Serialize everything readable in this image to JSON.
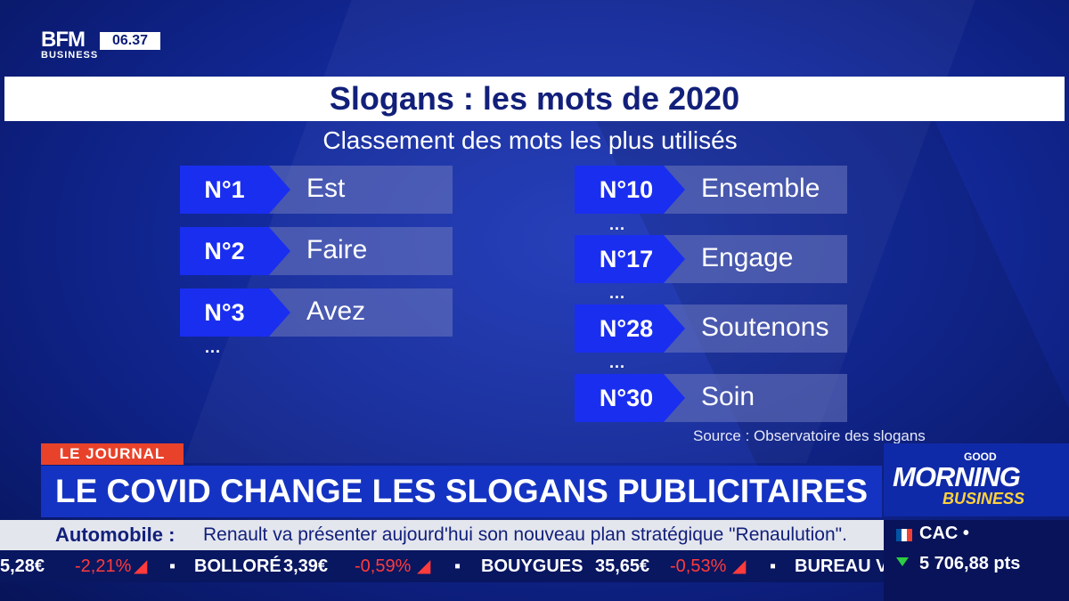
{
  "logo": {
    "brand": "BFM",
    "sub": "BUSINESS",
    "time": "06.37"
  },
  "title": "Slogans : les mots de 2020",
  "subtitle": "Classement des mots les plus utilisés",
  "ranking": {
    "left": [
      {
        "rank": "N°1",
        "word": "Est"
      },
      {
        "rank": "N°2",
        "word": "Faire"
      },
      {
        "rank": "N°3",
        "word": "Avez"
      }
    ],
    "right": [
      {
        "rank": "N°10",
        "word": "Ensemble"
      },
      {
        "rank": "N°17",
        "word": "Engage"
      },
      {
        "rank": "N°28",
        "word": "Soutenons"
      },
      {
        "rank": "N°30",
        "word": "Soin"
      }
    ],
    "ellipsis": "..."
  },
  "source": "Source : Observatoire des slogans",
  "lower_third": {
    "tag": "LE JOURNAL",
    "headline": "LE COVID CHANGE LES SLOGANS PUBLICITAIRES",
    "news_category": "Automobile :",
    "news_text": "Renault va présenter aujourd'hui son nouveau plan stratégique \"Renaulution\"."
  },
  "ticker": {
    "items": [
      {
        "name": "",
        "price": "5,28€",
        "change": "-2,21%"
      },
      {
        "name": "BOLLORÉ",
        "price": "3,39€",
        "change": "-0,59%"
      },
      {
        "name": "BOUYGUES",
        "price": "35,65€",
        "change": "-0,53%"
      },
      {
        "name": "BUREAU V",
        "price": "",
        "change": ""
      }
    ],
    "down_color": "#ff3b3b"
  },
  "program": {
    "good": "GOOD",
    "morning": "MORNING",
    "business": "BUSINESS"
  },
  "index": {
    "name": "CAC",
    "marker": "•",
    "value": "5 706,88 pts",
    "trend": "down",
    "trend_color": "#2ecc40"
  }
}
